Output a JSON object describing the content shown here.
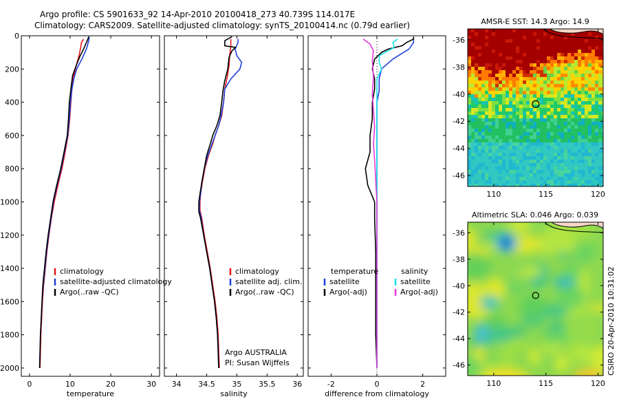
{
  "header": {
    "line1": "Argo profile: CS 5901633_92 14-Apr-2010 20100418_273 40.739S 114.017E",
    "line2": "Climatology: CARS2009. Satellite-adjusted climatology: synTS_20100414.nc (0.79d earlier)"
  },
  "side_label": "CSIRO 20-Apr-2010 10:31:02",
  "colors": {
    "red": "#e4161b",
    "blue": "#1f3fd9",
    "black": "#000000",
    "cyan": "#16e0e6",
    "magenta": "#e23ad8"
  },
  "chart_data": [
    {
      "type": "line",
      "xlabel": "temperature",
      "ylim": [
        0,
        2050
      ],
      "xlim": [
        -2,
        32
      ],
      "xticks": [
        0,
        10,
        20,
        30
      ],
      "yticks": [
        0,
        200,
        400,
        600,
        800,
        1000,
        1200,
        1400,
        1600,
        1800,
        2000
      ],
      "legend": [
        "climatology",
        "satellite-adjusted climatology",
        "Argo(..raw -QC)"
      ],
      "series": [
        {
          "color": "red",
          "points": [
            [
              13.3,
              20
            ],
            [
              12.8,
              40
            ],
            [
              12.6,
              70
            ],
            [
              12.2,
              120
            ],
            [
              11.5,
              180
            ],
            [
              10.9,
              240
            ],
            [
              10.5,
              300
            ],
            [
              10.2,
              400
            ],
            [
              9.9,
              500
            ],
            [
              9.5,
              600
            ],
            [
              8.8,
              700
            ],
            [
              8.0,
              800
            ],
            [
              7.0,
              900
            ],
            [
              6.1,
              1000
            ],
            [
              5.4,
              1100
            ],
            [
              4.8,
              1200
            ],
            [
              4.3,
              1300
            ],
            [
              3.9,
              1400
            ],
            [
              3.5,
              1500
            ],
            [
              3.2,
              1600
            ],
            [
              3.0,
              1700
            ],
            [
              2.8,
              1800
            ],
            [
              2.7,
              1900
            ],
            [
              2.6,
              2000
            ]
          ]
        },
        {
          "color": "blue",
          "points": [
            [
              14.7,
              5
            ],
            [
              14.6,
              30
            ],
            [
              14.0,
              80
            ],
            [
              12.9,
              140
            ],
            [
              11.6,
              200
            ],
            [
              10.9,
              260
            ],
            [
              10.4,
              330
            ],
            [
              10.1,
              400
            ],
            [
              9.8,
              500
            ],
            [
              9.4,
              600
            ],
            [
              8.6,
              700
            ],
            [
              7.8,
              800
            ],
            [
              6.8,
              900
            ],
            [
              5.9,
              1000
            ],
            [
              5.3,
              1100
            ],
            [
              4.7,
              1200
            ],
            [
              4.2,
              1300
            ],
            [
              3.8,
              1400
            ],
            [
              3.4,
              1500
            ],
            [
              3.1,
              1600
            ],
            [
              2.9,
              1700
            ],
            [
              2.7,
              1800
            ],
            [
              2.6,
              1900
            ],
            [
              2.5,
              2000
            ]
          ]
        },
        {
          "color": "black",
          "points": [
            [
              14.6,
              5
            ],
            [
              14.2,
              30
            ],
            [
              13.3,
              80
            ],
            [
              12.3,
              130
            ],
            [
              11.5,
              180
            ],
            [
              10.6,
              240
            ],
            [
              10.2,
              320
            ],
            [
              9.8,
              400
            ],
            [
              9.6,
              500
            ],
            [
              9.3,
              600
            ],
            [
              8.5,
              700
            ],
            [
              7.7,
              800
            ],
            [
              6.7,
              900
            ],
            [
              5.8,
              1000
            ],
            [
              5.2,
              1100
            ],
            [
              4.6,
              1200
            ],
            [
              4.1,
              1300
            ],
            [
              3.7,
              1400
            ],
            [
              3.3,
              1500
            ],
            [
              3.1,
              1600
            ],
            [
              2.9,
              1700
            ],
            [
              2.7,
              1800
            ],
            [
              2.6,
              1900
            ],
            [
              2.5,
              2000
            ]
          ]
        }
      ]
    },
    {
      "type": "line",
      "xlabel": "salinity",
      "ylim": [
        0,
        2050
      ],
      "xlim": [
        33.8,
        36.1
      ],
      "xticks": [
        34,
        34.5,
        35,
        35.5,
        36
      ],
      "legend": [
        "climatology",
        "satellite adj. clim.",
        "Argo(..raw -QC)"
      ],
      "annotation": [
        "Argo AUSTRALIA",
        "PI: Susan Wijffels"
      ],
      "series": [
        {
          "color": "red",
          "points": [
            [
              34.9,
              20
            ],
            [
              34.9,
              60
            ],
            [
              34.88,
              120
            ],
            [
              34.87,
              180
            ],
            [
              34.84,
              250
            ],
            [
              34.8,
              320
            ],
            [
              34.78,
              400
            ],
            [
              34.75,
              480
            ],
            [
              34.7,
              540
            ],
            [
              34.64,
              600
            ],
            [
              34.6,
              650
            ],
            [
              34.53,
              720
            ],
            [
              34.47,
              800
            ],
            [
              34.43,
              880
            ],
            [
              34.4,
              950
            ],
            [
              34.39,
              1000
            ],
            [
              34.39,
              1050
            ],
            [
              34.42,
              1100
            ],
            [
              34.46,
              1200
            ],
            [
              34.51,
              1300
            ],
            [
              34.56,
              1400
            ],
            [
              34.6,
              1500
            ],
            [
              34.64,
              1600
            ],
            [
              34.67,
              1700
            ],
            [
              34.69,
              1800
            ],
            [
              34.7,
              1900
            ],
            [
              34.71,
              2000
            ]
          ]
        },
        {
          "color": "blue",
          "points": [
            [
              35.02,
              20
            ],
            [
              35.02,
              40
            ],
            [
              34.97,
              80
            ],
            [
              35.0,
              120
            ],
            [
              35.08,
              160
            ],
            [
              35.05,
              200
            ],
            [
              34.9,
              260
            ],
            [
              34.8,
              320
            ],
            [
              34.78,
              400
            ],
            [
              34.74,
              480
            ],
            [
              34.7,
              540
            ],
            [
              34.64,
              600
            ],
            [
              34.58,
              660
            ],
            [
              34.52,
              720
            ],
            [
              34.46,
              800
            ],
            [
              34.42,
              880
            ],
            [
              34.4,
              950
            ],
            [
              34.38,
              1000
            ],
            [
              34.38,
              1050
            ],
            [
              34.41,
              1100
            ],
            [
              34.45,
              1200
            ],
            [
              34.5,
              1300
            ],
            [
              34.55,
              1400
            ],
            [
              34.59,
              1500
            ],
            [
              34.63,
              1600
            ],
            [
              34.66,
              1700
            ],
            [
              34.68,
              1800
            ],
            [
              34.69,
              1900
            ],
            [
              34.7,
              2000
            ]
          ]
        },
        {
          "color": "black",
          "points": [
            [
              34.92,
              5
            ],
            [
              34.8,
              30
            ],
            [
              34.8,
              60
            ],
            [
              34.98,
              70
            ],
            [
              34.92,
              90
            ],
            [
              34.87,
              130
            ],
            [
              34.85,
              200
            ],
            [
              34.8,
              270
            ],
            [
              34.77,
              330
            ],
            [
              34.75,
              400
            ],
            [
              34.72,
              480
            ],
            [
              34.67,
              540
            ],
            [
              34.6,
              600
            ],
            [
              34.57,
              640
            ],
            [
              34.5,
              720
            ],
            [
              34.46,
              800
            ],
            [
              34.42,
              880
            ],
            [
              34.39,
              950
            ],
            [
              34.37,
              1000
            ],
            [
              34.37,
              1060
            ],
            [
              34.4,
              1100
            ],
            [
              34.45,
              1200
            ],
            [
              34.5,
              1300
            ],
            [
              34.55,
              1400
            ],
            [
              34.59,
              1500
            ],
            [
              34.63,
              1600
            ],
            [
              34.66,
              1700
            ],
            [
              34.68,
              1800
            ],
            [
              34.69,
              1900
            ],
            [
              34.7,
              2000
            ]
          ]
        }
      ]
    },
    {
      "type": "line",
      "xlabel": "difference from climatology",
      "ylim": [
        0,
        2050
      ],
      "xlim": [
        -3,
        3
      ],
      "xticks": [
        -2,
        0,
        2
      ],
      "legend_titles": [
        "temperature",
        "salinity"
      ],
      "legend": [
        "satellite",
        "Argo(-adj)",
        "satellite",
        "Argo(-adj)"
      ],
      "series": [
        {
          "color": "blue",
          "name": "temperature satellite",
          "points": [
            [
              1.6,
              20
            ],
            [
              1.6,
              40
            ],
            [
              1.4,
              80
            ],
            [
              0.7,
              140
            ],
            [
              0.2,
              200
            ],
            [
              0.1,
              260
            ],
            [
              0.1,
              330
            ],
            [
              0.0,
              400
            ],
            [
              0.0,
              600
            ],
            [
              0.0,
              1000
            ],
            [
              0.0,
              1400
            ],
            [
              0.0,
              2000
            ]
          ]
        },
        {
          "color": "black",
          "name": "temperature Argo(-adj)",
          "points": [
            [
              1.6,
              5
            ],
            [
              1.6,
              20
            ],
            [
              1.3,
              40
            ],
            [
              1.1,
              60
            ],
            [
              0.5,
              80
            ],
            [
              0.2,
              100
            ],
            [
              0.05,
              120
            ],
            [
              -0.1,
              140
            ],
            [
              -0.2,
              200
            ],
            [
              -0.1,
              260
            ],
            [
              -0.1,
              320
            ],
            [
              -0.2,
              400
            ],
            [
              -0.2,
              500
            ],
            [
              -0.3,
              600
            ],
            [
              -0.3,
              700
            ],
            [
              -0.5,
              800
            ],
            [
              -0.4,
              900
            ],
            [
              -0.1,
              1000
            ],
            [
              -0.1,
              1100
            ],
            [
              -0.05,
              1300
            ],
            [
              -0.05,
              1500
            ],
            [
              -0.05,
              1800
            ],
            [
              0.0,
              2000
            ]
          ]
        },
        {
          "color": "cyan",
          "name": "salinity satellite",
          "points": [
            [
              0.9,
              20
            ],
            [
              0.7,
              40
            ],
            [
              0.75,
              70
            ],
            [
              0.1,
              120
            ],
            [
              0.1,
              160
            ],
            [
              0.2,
              200
            ],
            [
              0.0,
              260
            ],
            [
              0.0,
              400
            ],
            [
              0.0,
              600
            ],
            [
              0.0,
              1000
            ],
            [
              0.0,
              1500
            ],
            [
              0.0,
              2000
            ]
          ]
        },
        {
          "color": "magenta",
          "name": "salinity Argo(-adj)",
          "points": [
            [
              -0.6,
              20
            ],
            [
              -0.3,
              50
            ],
            [
              -0.15,
              90
            ],
            [
              -0.2,
              150
            ],
            [
              -0.15,
              250
            ],
            [
              -0.2,
              350
            ],
            [
              -0.15,
              450
            ],
            [
              -0.1,
              550
            ],
            [
              -0.15,
              650
            ],
            [
              -0.1,
              750
            ],
            [
              0.0,
              1000
            ],
            [
              0.0,
              1500
            ],
            [
              0.0,
              2000
            ]
          ]
        }
      ]
    },
    {
      "type": "heatmap",
      "title": "AMSR-E SST: 14.3 Argo: 14.9",
      "xticks": [
        110,
        115,
        120
      ],
      "yticks": [
        -36,
        -38,
        -40,
        -42,
        -44,
        -46
      ],
      "xlim": [
        107.5,
        120.5
      ],
      "ylim": [
        -46.8,
        -35.2
      ],
      "marker": [
        114.017,
        -40.739
      ]
    },
    {
      "type": "heatmap",
      "title": "Altimetric SLA: 0.046 Argo: 0.039",
      "xticks": [
        110,
        115,
        120
      ],
      "yticks": [
        -36,
        -38,
        -40,
        -42,
        -44,
        -46
      ],
      "xlim": [
        107.5,
        120.5
      ],
      "ylim": [
        -46.8,
        -35.2
      ],
      "marker": [
        114.017,
        -40.739
      ]
    }
  ]
}
